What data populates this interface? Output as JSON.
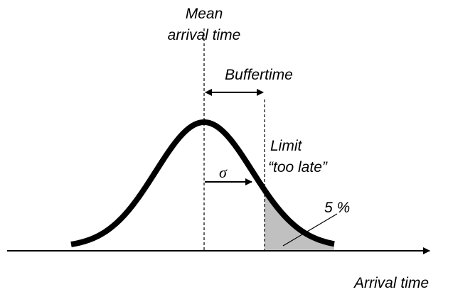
{
  "mean_label": [
    "Mean",
    "arrival time"
  ],
  "buffer_label": "Buffertime",
  "limit_label": [
    "Limit",
    "“too late”"
  ],
  "sigma_label": "σ",
  "percent_label": "5 %",
  "axis_label": "Arrival time"
}
